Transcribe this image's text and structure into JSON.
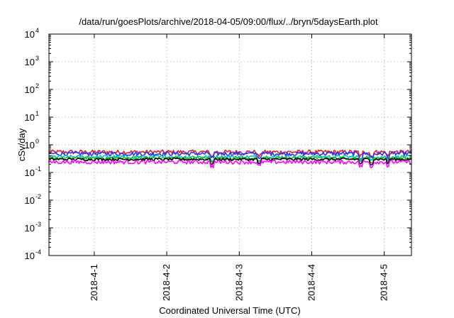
{
  "chart_data": {
    "type": "line",
    "title": "/data/run/goesPlots/archive/2018-04-05/09:00/flux/../bryn/5daysEarth.plot",
    "xlabel": "Coordinated Universal Time (UTC)",
    "ylabel": "cSv/day",
    "yscale": "log",
    "ylim": [
      0.0001,
      10000
    ],
    "xlim": [
      "2018-03-31T09:00",
      "2018-04-05T09:00"
    ],
    "grid": true,
    "x_ticks": [
      {
        "value": "2018-04-01T00:00",
        "label": "2018-4-1"
      },
      {
        "value": "2018-04-02T00:00",
        "label": "2018-4-2"
      },
      {
        "value": "2018-04-03T00:00",
        "label": "2018-4-3"
      },
      {
        "value": "2018-04-04T00:00",
        "label": "2018-4-4"
      },
      {
        "value": "2018-04-05T00:00",
        "label": "2018-4-5"
      }
    ],
    "y_ticks": [
      {
        "value": 0.0001,
        "base": "10",
        "exp": "-4"
      },
      {
        "value": 0.001,
        "base": "10",
        "exp": "-3"
      },
      {
        "value": 0.01,
        "base": "10",
        "exp": "-2"
      },
      {
        "value": 0.1,
        "base": "10",
        "exp": "-1"
      },
      {
        "value": 1,
        "base": "10",
        "exp": "0"
      },
      {
        "value": 10,
        "base": "10",
        "exp": "1"
      },
      {
        "value": 100,
        "base": "10",
        "exp": "2"
      },
      {
        "value": 1000,
        "base": "10",
        "exp": "3"
      },
      {
        "value": 10000,
        "base": "10",
        "exp": "4"
      }
    ],
    "series": [
      {
        "color": "#e02020",
        "level": 0.55,
        "noise": 0.18
      },
      {
        "color": "#3030ff",
        "level": 0.48,
        "noise": 0.17
      },
      {
        "color": "#00c0c0",
        "level": 0.37,
        "noise": 0.14
      },
      {
        "color": "#20c020",
        "level": 0.33,
        "noise": 0.12
      },
      {
        "color": "#000000",
        "level": 0.3,
        "noise": 0.11
      },
      {
        "color": "#ff00ff",
        "level": 0.24,
        "noise": 0.16
      }
    ]
  }
}
